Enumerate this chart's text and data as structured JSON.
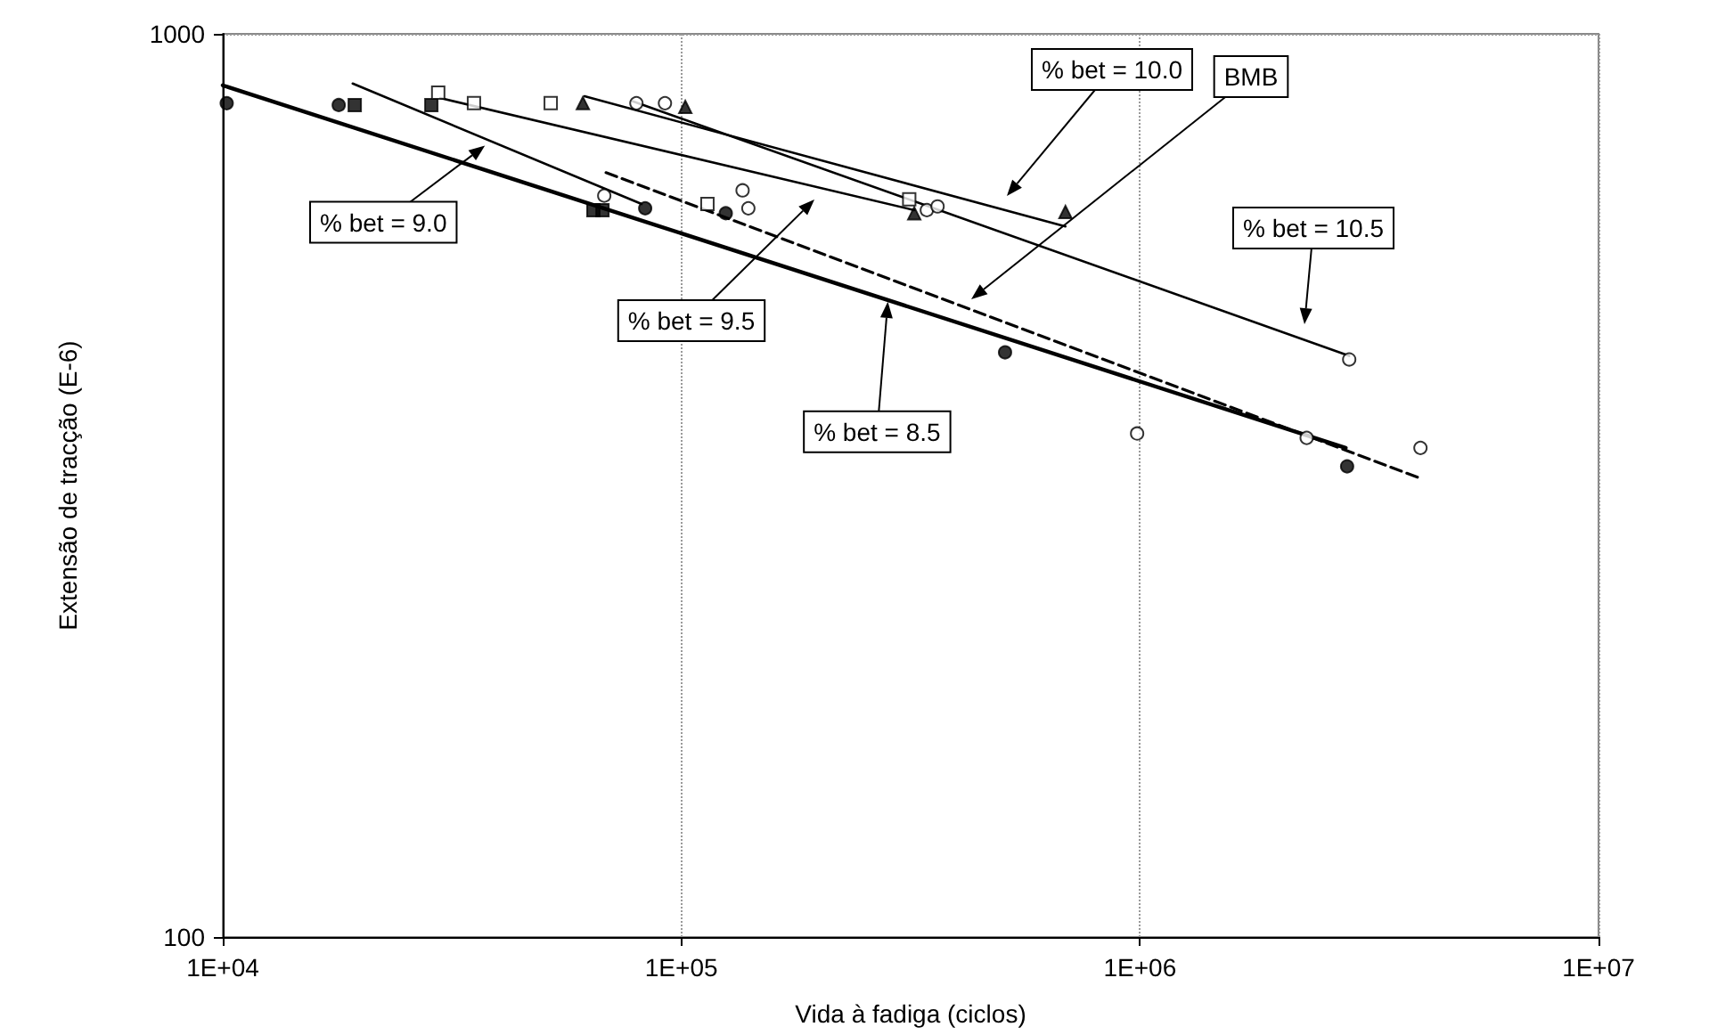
{
  "chart_data": {
    "type": "scatter",
    "xlabel": "Vida à fadiga (ciclos)",
    "ylabel": "Extensão de tracção (E-6)",
    "log": "xy",
    "grid": true,
    "xlim": [
      10000,
      10000000
    ],
    "xticks": [
      {
        "value": 10000,
        "label": "1E+04"
      },
      {
        "value": 100000,
        "label": "1E+05"
      },
      {
        "value": 1000000,
        "label": "1E+06"
      },
      {
        "value": 10000000,
        "label": "1E+07"
      }
    ],
    "ylim": [
      100,
      1000
    ],
    "yticks": [
      100,
      1000
    ],
    "series": [
      {
        "marker": "circle",
        "color": "#000000",
        "x": [
          10200,
          17900,
          83400,
          125000,
          508000,
          2830000
        ],
        "values": [
          838,
          834,
          641,
          633,
          444,
          332
        ]
      },
      {
        "marker": "square",
        "color": "#000000",
        "x": [
          19400,
          28500,
          64300,
          67300
        ],
        "values": [
          834,
          834,
          638,
          638
        ]
      },
      {
        "marker": "square",
        "color": "#ffffff",
        "x": [
          29500,
          35300,
          51900,
          114000,
          314000
        ],
        "values": [
          861,
          838,
          838,
          648,
          656
        ]
      },
      {
        "marker": "triangle",
        "color": "#000000",
        "x": [
          61000,
          102000,
          322000,
          688000
        ],
        "values": [
          838,
          830,
          633,
          635
        ]
      },
      {
        "marker": "circle",
        "color": "#ffffff",
        "x": [
          67900,
          79800,
          92100,
          136000,
          140000,
          343000,
          362000,
          986000,
          2310000,
          2860000,
          4090000
        ],
        "values": [
          662,
          838,
          838,
          671,
          641,
          638,
          644,
          361,
          357,
          436,
          348
        ]
      },
      {
        "type": "line",
        "marker": "none",
        "line_style": "solid",
        "color": "#000000",
        "x": [
          10000,
          2810000
        ],
        "values": [
          877,
          348
        ]
      },
      {
        "type": "line",
        "marker": "none",
        "line_style": "solid",
        "color": "#000000",
        "x": [
          19200,
          81900
        ],
        "values": [
          881,
          648
        ]
      },
      {
        "type": "line",
        "marker": "none",
        "line_style": "solid",
        "color": "#000000",
        "x": [
          29800,
          322000
        ],
        "values": [
          849,
          638
        ]
      },
      {
        "type": "line",
        "marker": "none",
        "line_style": "solid",
        "color": "#000000",
        "x": [
          61500,
          688000
        ],
        "values": [
          853,
          612
        ]
      },
      {
        "type": "line",
        "marker": "none",
        "line_style": "solid",
        "color": "#000000",
        "x": [
          78400,
          2860000
        ],
        "values": [
          842,
          440
        ]
      },
      {
        "type": "line",
        "marker": "none",
        "line_style": "dashed",
        "color": "#000000",
        "x": [
          68500,
          4090000
        ],
        "values": [
          702,
          322
        ]
      }
    ],
    "annotations": [
      {
        "text": "% bet = 9.0",
        "x": 37300,
        "y": 752
      },
      "% bet = 9.5",
      {
        "text": "% bet = 8.5",
        "x": 282000,
        "y": 505
      },
      "% bet = 10.0",
      "BMB",
      "% bet = 10.5"
    ]
  }
}
